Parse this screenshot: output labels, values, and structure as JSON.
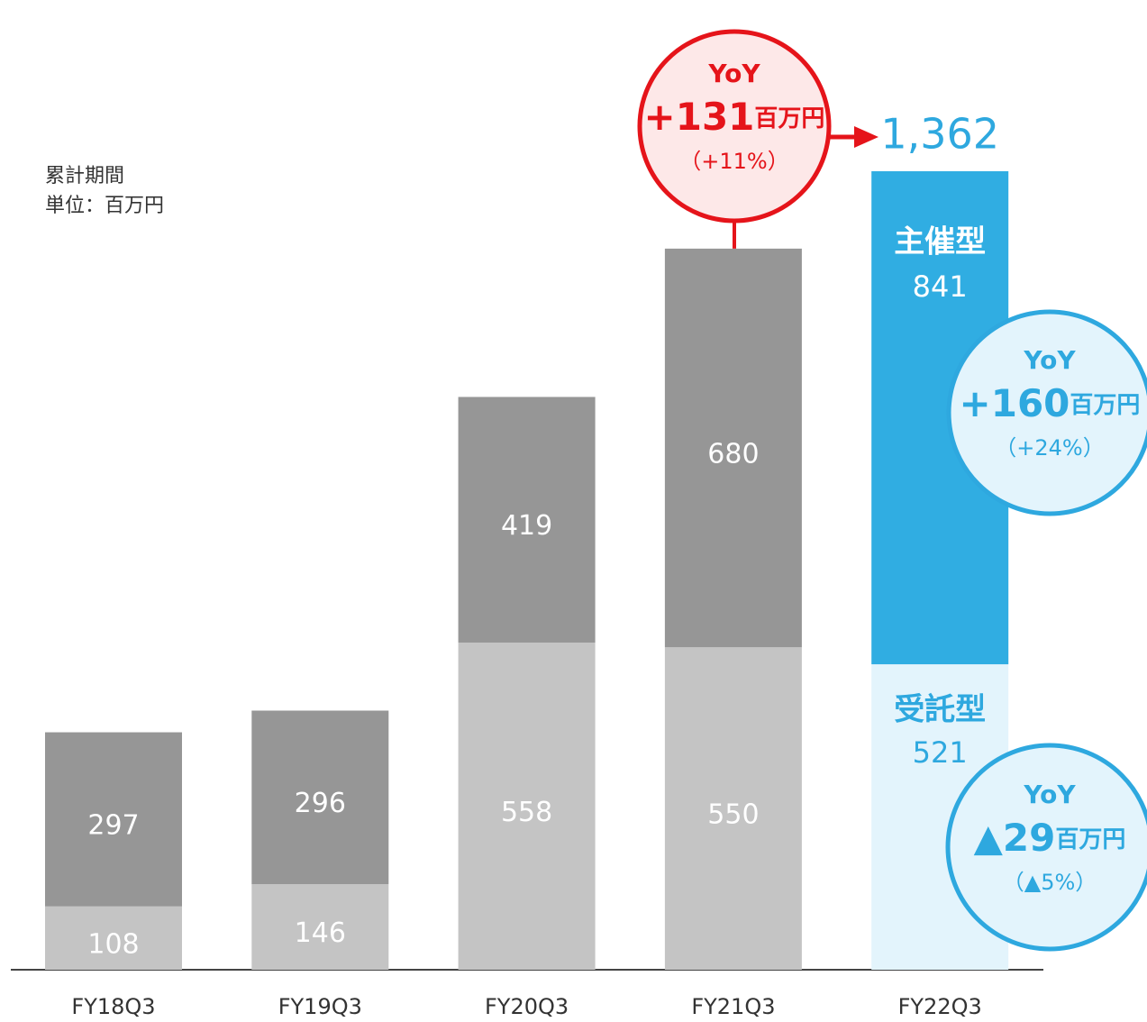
{
  "chart_data": {
    "type": "stacked_bar",
    "notes": [
      "累計期間",
      "単位：百万円"
    ],
    "categories": [
      "FY18Q3",
      "FY19Q3",
      "FY20Q3",
      "FY21Q3",
      "FY22Q3"
    ],
    "series": [
      {
        "name": "受託型",
        "values": [
          108,
          146,
          558,
          550,
          521
        ],
        "colors": [
          "#c4c4c4",
          "#c4c4c4",
          "#c4c4c4",
          "#c4c4c4",
          "#e3f4fc"
        ],
        "label_colors": [
          "#ffffff",
          "#ffffff",
          "#ffffff",
          "#ffffff",
          "#2ea8df"
        ]
      },
      {
        "name": "主催型",
        "values": [
          297,
          296,
          419,
          680,
          841
        ],
        "colors": [
          "#969696",
          "#969696",
          "#969696",
          "#969696",
          "#30ade2"
        ],
        "label_colors": [
          "#ffffff",
          "#ffffff",
          "#ffffff",
          "#ffffff",
          "#ffffff"
        ]
      }
    ],
    "total": {
      "value": 1362,
      "label": "1,362",
      "color": "#2ea8df"
    },
    "annotations": [
      {
        "title": "YoY",
        "value": "+131",
        "unit": "百万円",
        "pct": "（+11%）",
        "color": "#e5141a",
        "fill": "#fde8e8"
      },
      {
        "title": "YoY",
        "value": "+160",
        "unit": "百万円",
        "pct": "（+24%）",
        "color": "#2ea8df",
        "fill": "#e3f4fc"
      },
      {
        "title": "YoY",
        "value": "▲29",
        "unit": "百万円",
        "pct": "（▲5%）",
        "color": "#2ea8df",
        "fill": "#e3f4fc"
      }
    ]
  }
}
